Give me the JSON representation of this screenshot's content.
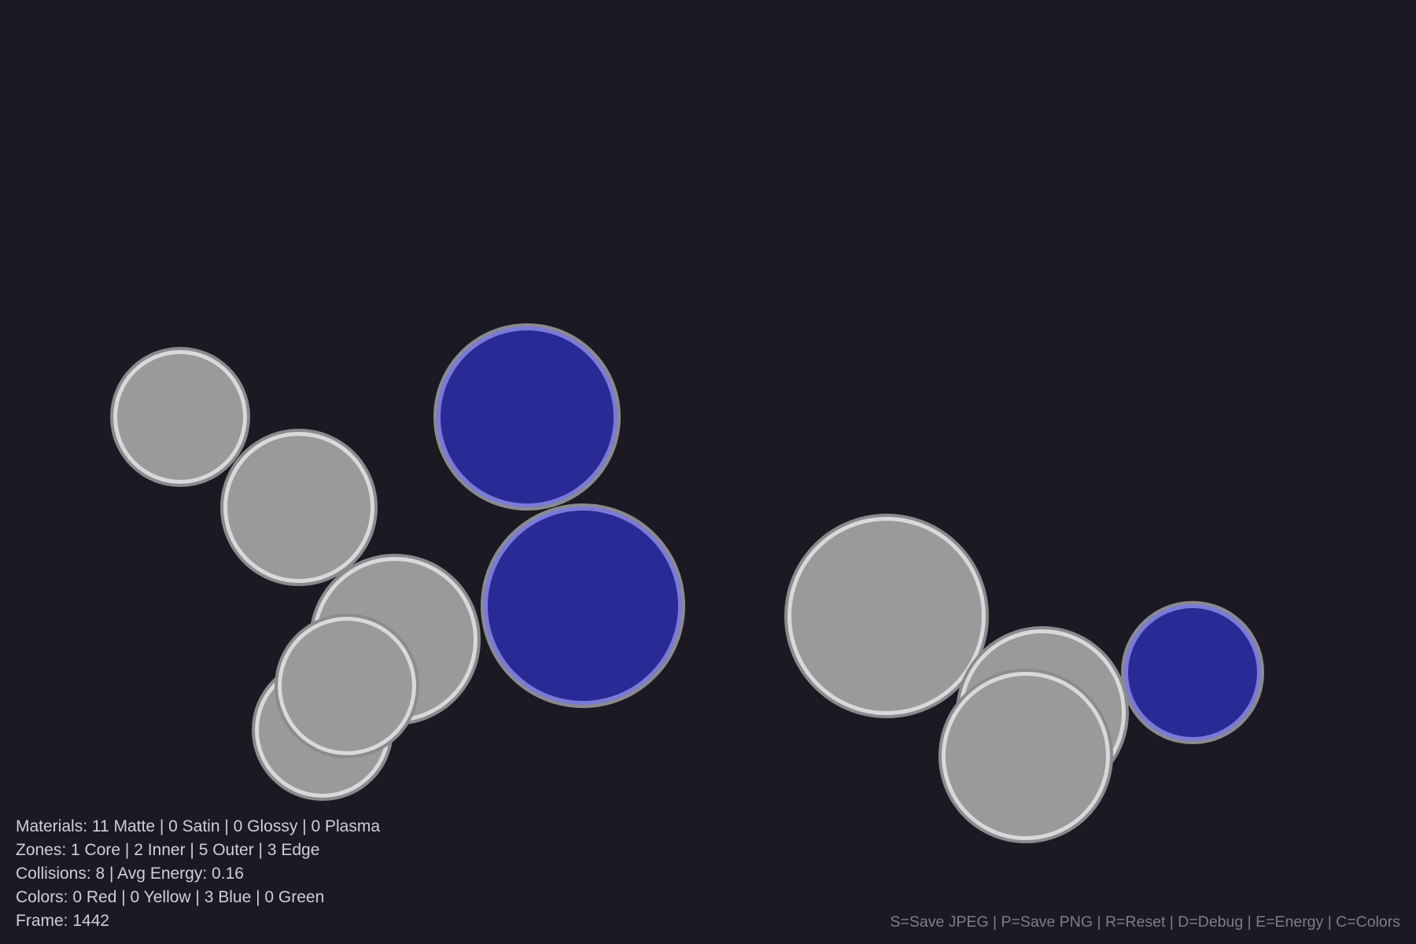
{
  "scene": {
    "background": "#1b1a22",
    "ball_colors": {
      "matte_gray": "#9a9a9a",
      "blue": "#2a2a96",
      "gray_rim_inner": "#d9d9d9",
      "gray_rim_outer": "#8a8a8f",
      "blue_rim_inner": "#7a7ad9",
      "blue_rim_outer": "#8a8a8f"
    },
    "balls": [
      {
        "name": "ball-gray-1",
        "color": "gray"
      },
      {
        "name": "ball-gray-2",
        "color": "gray"
      },
      {
        "name": "ball-gray-3",
        "color": "gray"
      },
      {
        "name": "ball-gray-4",
        "color": "gray"
      },
      {
        "name": "ball-gray-5",
        "color": "gray"
      },
      {
        "name": "ball-blue-1",
        "color": "blue"
      },
      {
        "name": "ball-blue-2",
        "color": "blue"
      },
      {
        "name": "ball-gray-6",
        "color": "gray"
      },
      {
        "name": "ball-gray-7",
        "color": "gray"
      },
      {
        "name": "ball-gray-8",
        "color": "gray"
      },
      {
        "name": "ball-blue-3",
        "color": "blue"
      }
    ]
  },
  "hud": {
    "materials": "Materials: 11 Matte | 0 Satin | 0 Glossy | 0 Plasma",
    "zones": "Zones: 1 Core | 2 Inner | 5 Outer | 3 Edge",
    "collisions": "Collisions: 8 | Avg Energy: 0.16",
    "colors": "Colors: 0 Red | 0 Yellow | 3 Blue | 0 Green",
    "frame": "Frame: 1442"
  },
  "help": {
    "keys": "S=Save JPEG | P=Save PNG | R=Reset | D=Debug | E=Energy | C=Colors"
  }
}
